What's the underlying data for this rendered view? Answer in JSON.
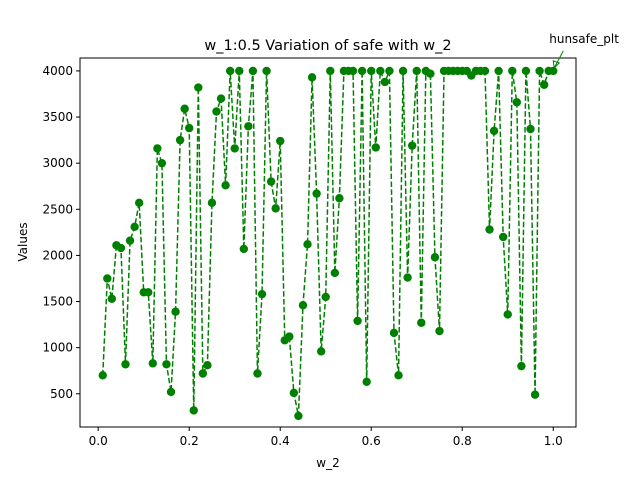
{
  "chart_data": {
    "type": "line",
    "title": "w_1:0.5 Variation of safe with w_2",
    "xlabel": "w_2",
    "ylabel": "Values",
    "xlim": [
      -0.04,
      1.05
    ],
    "ylim": [
      140,
      4140
    ],
    "x_ticks": [
      0.0,
      0.2,
      0.4,
      0.6,
      0.8,
      1.0
    ],
    "x_tick_labels": [
      "0.0",
      "0.2",
      "0.4",
      "0.6",
      "0.8",
      "1.0"
    ],
    "y_ticks": [
      500,
      1000,
      1500,
      2000,
      2500,
      3000,
      3500,
      4000
    ],
    "y_tick_labels": [
      "500",
      "1000",
      "1500",
      "2000",
      "2500",
      "3000",
      "3500",
      "4000"
    ],
    "grid": false,
    "series": [
      {
        "color": "#008000",
        "line_style": "dashed",
        "marker": "circle",
        "x": [
          0.01,
          0.02,
          0.03,
          0.04,
          0.05,
          0.06,
          0.07,
          0.08,
          0.09,
          0.1,
          0.11,
          0.12,
          0.13,
          0.14,
          0.15,
          0.16,
          0.17,
          0.18,
          0.19,
          0.2,
          0.21,
          0.22,
          0.23,
          0.24,
          0.25,
          0.26,
          0.27,
          0.28,
          0.29,
          0.3,
          0.31,
          0.32,
          0.33,
          0.34,
          0.35,
          0.36,
          0.37,
          0.38,
          0.39,
          0.4,
          0.41,
          0.42,
          0.43,
          0.44,
          0.45,
          0.46,
          0.47,
          0.48,
          0.49,
          0.5,
          0.51,
          0.52,
          0.53,
          0.54,
          0.55,
          0.56,
          0.57,
          0.58,
          0.59,
          0.6,
          0.61,
          0.62,
          0.63,
          0.64,
          0.65,
          0.66,
          0.67,
          0.68,
          0.69,
          0.7,
          0.71,
          0.72,
          0.73,
          0.74,
          0.75,
          0.76,
          0.77,
          0.78,
          0.79,
          0.8,
          0.81,
          0.82,
          0.83,
          0.84,
          0.85,
          0.86,
          0.87,
          0.88,
          0.89,
          0.9,
          0.91,
          0.92,
          0.93,
          0.94,
          0.95,
          0.96,
          0.97,
          0.98,
          0.99,
          1.0
        ],
        "y": [
          700,
          1750,
          1530,
          2110,
          2080,
          820,
          2160,
          2310,
          2570,
          1600,
          1600,
          830,
          3160,
          3000,
          820,
          520,
          1390,
          3250,
          3590,
          3380,
          320,
          3820,
          720,
          810,
          2570,
          3560,
          3700,
          2760,
          4000,
          3160,
          4000,
          2070,
          3400,
          4000,
          720,
          1580,
          4000,
          2800,
          2510,
          3240,
          1080,
          1120,
          510,
          260,
          1460,
          2120,
          3930,
          2670,
          960,
          1550,
          4000,
          1810,
          2620,
          4000,
          4000,
          4000,
          1290,
          4000,
          630,
          4000,
          3170,
          4000,
          3880,
          4000,
          1160,
          700,
          4000,
          1760,
          3190,
          4000,
          1270,
          4000,
          3970,
          1980,
          1180,
          4000,
          4000,
          4000,
          4000,
          4000,
          4000,
          3950,
          4000,
          4000,
          4000,
          2280,
          3350,
          4000,
          2200,
          1360,
          4000,
          3660,
          800,
          4000,
          3370,
          490,
          4000,
          3850,
          4000,
          4000
        ]
      }
    ],
    "annotation": {
      "text": "hunsafe_plt",
      "color": "#008000",
      "target_x": 1.0,
      "target_y": 4000
    }
  }
}
